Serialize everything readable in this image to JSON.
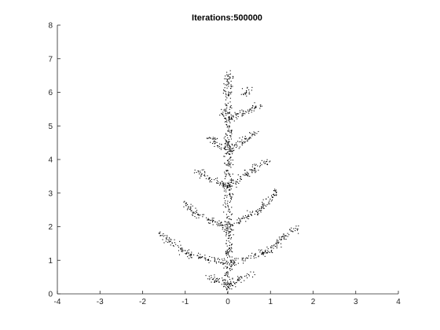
{
  "chart_data": {
    "type": "scatter",
    "title": "Iterations:500000",
    "xlabel": "",
    "ylabel": "",
    "xlim": [
      -4,
      4
    ],
    "ylim": [
      0,
      8
    ],
    "xticks": [
      "-4",
      "-3",
      "-2",
      "-1",
      "0",
      "1",
      "2",
      "3",
      "4"
    ],
    "yticks": [
      "0",
      "1",
      "2",
      "3",
      "4",
      "5",
      "6",
      "7",
      "8"
    ],
    "grid": false,
    "legend": "none",
    "point_color": "#000000",
    "description_fractal": "fractal-tree",
    "series": [
      {
        "branches": [
          {
            "x1": 0,
            "y1": 0.05,
            "x2": 0,
            "y2": 6.65
          },
          {
            "x1": 0,
            "y1": 0.9,
            "x2": -0.95,
            "y2": 1.2
          },
          {
            "x1": -0.95,
            "y1": 1.2,
            "x2": -1.6,
            "y2": 1.8
          },
          {
            "x1": 0,
            "y1": 0.9,
            "x2": 0.95,
            "y2": 1.3
          },
          {
            "x1": 0.95,
            "y1": 1.3,
            "x2": 1.6,
            "y2": 2.0
          },
          {
            "x1": 0,
            "y1": 2.0,
            "x2": -0.8,
            "y2": 2.4
          },
          {
            "x1": -0.8,
            "y1": 2.4,
            "x2": -1.05,
            "y2": 2.8
          },
          {
            "x1": 0,
            "y1": 2.0,
            "x2": 0.8,
            "y2": 2.55
          },
          {
            "x1": 0.8,
            "y1": 2.55,
            "x2": 1.15,
            "y2": 3.1
          },
          {
            "x1": 0,
            "y1": 3.2,
            "x2": -0.55,
            "y2": 3.5
          },
          {
            "x1": -0.55,
            "y1": 3.5,
            "x2": -0.75,
            "y2": 3.7
          },
          {
            "x1": 0,
            "y1": 3.2,
            "x2": 0.55,
            "y2": 3.7
          },
          {
            "x1": 0.55,
            "y1": 3.7,
            "x2": 0.95,
            "y2": 4.0
          },
          {
            "x1": 0,
            "y1": 4.3,
            "x2": -0.3,
            "y2": 4.5
          },
          {
            "x1": -0.3,
            "y1": 4.5,
            "x2": -0.45,
            "y2": 4.72
          },
          {
            "x1": 0,
            "y1": 4.3,
            "x2": 0.4,
            "y2": 4.6
          },
          {
            "x1": 0.4,
            "y1": 4.6,
            "x2": 0.7,
            "y2": 4.82
          },
          {
            "x1": 0,
            "y1": 5.2,
            "x2": 0.45,
            "y2": 5.45
          },
          {
            "x1": 0.45,
            "y1": 5.45,
            "x2": 0.75,
            "y2": 5.65
          },
          {
            "x1": 0,
            "y1": 5.2,
            "x2": -0.15,
            "y2": 5.45
          },
          {
            "x1": 0.35,
            "y1": 5.9,
            "x2": 0.55,
            "y2": 6.15
          },
          {
            "x1": 0,
            "y1": 0.25,
            "x2": -0.5,
            "y2": 0.55
          },
          {
            "x1": 0,
            "y1": 0.25,
            "x2": 0.55,
            "y2": 0.65
          }
        ]
      }
    ]
  }
}
